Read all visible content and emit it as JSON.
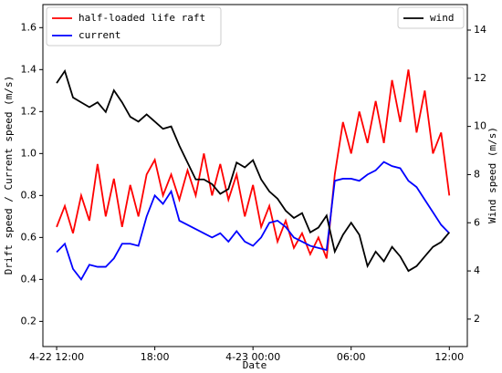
{
  "chart_data": {
    "type": "line",
    "xlabel": "Date",
    "ylabel": "Drift speed / Current speed (m/s)",
    "y2label": "Wind speed (m/s)",
    "xlim": [
      11.16,
      37.1
    ],
    "xticks": [
      {
        "value": 12,
        "label": "4-22 12:00"
      },
      {
        "value": 18,
        "label": "18:00"
      },
      {
        "value": 24,
        "label": "4-23 00:00"
      },
      {
        "value": 30,
        "label": "06:00"
      },
      {
        "value": 36,
        "label": "12:00"
      }
    ],
    "ylim": [
      0.08,
      1.71
    ],
    "yticks": [
      0.2,
      0.4,
      0.6,
      0.8,
      {
        "value": 1,
        "label": "1.0"
      },
      1.2,
      1.4,
      1.6
    ],
    "y2lim": [
      0.86,
      15.06
    ],
    "y2ticks": [
      2,
      4,
      6,
      8,
      10,
      12,
      14
    ],
    "grid": false,
    "legend": "upper left",
    "legend2": "upper right",
    "x": [
      12,
      12.5,
      13,
      13.5,
      14,
      14.5,
      15,
      15.5,
      16,
      16.5,
      17,
      17.5,
      18,
      18.5,
      19,
      19.5,
      20,
      20.5,
      21,
      21.5,
      22,
      22.5,
      23,
      23.5,
      24,
      24.5,
      25,
      25.5,
      26,
      26.5,
      27,
      27.5,
      28,
      28.5,
      29,
      29.5,
      30,
      30.5,
      31,
      31.5,
      32,
      32.5,
      33,
      33.5,
      34,
      34.5,
      35,
      35.5,
      36
    ],
    "series": [
      {
        "name": "half-loaded life raft",
        "color": "#ff0000",
        "values": [
          0.65,
          0.75,
          0.62,
          0.8,
          0.68,
          0.95,
          0.7,
          0.88,
          0.65,
          0.85,
          0.7,
          0.9,
          0.97,
          0.8,
          0.9,
          0.78,
          0.92,
          0.8,
          1.0,
          0.8,
          0.95,
          0.78,
          0.9,
          0.7,
          0.85,
          0.65,
          0.75,
          0.58,
          0.68,
          0.55,
          0.62,
          0.52,
          0.6,
          0.5,
          0.9,
          1.15,
          1.0,
          1.2,
          1.05,
          1.25,
          1.05,
          1.35,
          1.15,
          1.4,
          1.1,
          1.3,
          1.0,
          1.1,
          0.8
        ]
      },
      {
        "name": "current",
        "color": "#0000ff",
        "values": [
          0.53,
          0.57,
          0.45,
          0.4,
          0.47,
          0.46,
          0.46,
          0.5,
          0.57,
          0.57,
          0.56,
          0.7,
          0.8,
          0.76,
          0.82,
          0.68,
          0.66,
          0.64,
          0.62,
          0.6,
          0.62,
          0.58,
          0.63,
          0.58,
          0.56,
          0.6,
          0.67,
          0.68,
          0.65,
          0.6,
          0.58,
          0.56,
          0.55,
          0.54,
          0.87,
          0.88,
          0.88,
          0.87,
          0.9,
          0.92,
          0.96,
          0.94,
          0.93,
          0.87,
          0.84,
          0.78,
          0.72,
          0.66,
          0.62
        ]
      },
      {
        "name": "wind",
        "color": "#000000",
        "axis": "y2",
        "values": [
          11.8,
          12.3,
          11.2,
          11.0,
          10.8,
          11.0,
          10.6,
          11.5,
          11.0,
          10.4,
          10.2,
          10.5,
          10.2,
          9.9,
          10.0,
          9.2,
          8.5,
          7.8,
          7.8,
          7.6,
          7.2,
          7.4,
          8.5,
          8.3,
          8.6,
          7.8,
          7.3,
          7.0,
          6.5,
          6.2,
          6.4,
          5.6,
          5.8,
          6.3,
          4.8,
          5.5,
          6.0,
          5.5,
          4.2,
          4.8,
          4.4,
          5.0,
          4.6,
          4.0,
          4.2,
          4.6,
          5.0,
          5.2,
          5.6
        ]
      }
    ]
  }
}
